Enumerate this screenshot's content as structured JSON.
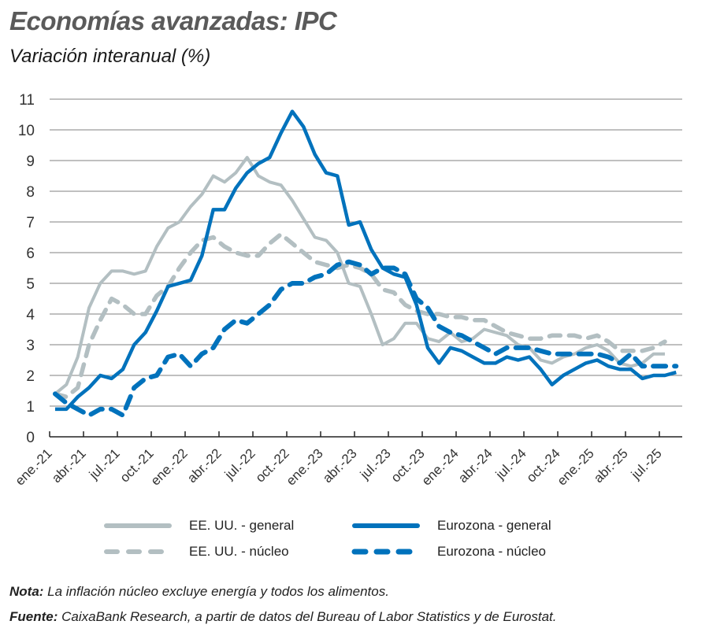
{
  "header": {
    "title": "Economías avanzadas: IPC",
    "subtitle": "Variación interanual (%)"
  },
  "colors": {
    "us": "#b3bfc2",
    "eurozone": "#0072bc",
    "grid": "#9a9a9a",
    "axis": "#222222"
  },
  "legend": {
    "items": [
      {
        "label": "EE. UU. - general",
        "series": "us_general"
      },
      {
        "label": "Eurozona - general",
        "series": "ez_general"
      },
      {
        "label": "EE. UU. - núcleo",
        "series": "us_core"
      },
      {
        "label": "Eurozona - núcleo",
        "series": "ez_core"
      }
    ]
  },
  "notes": {
    "nota_label": "Nota:",
    "nota_text": " La inflación núcleo excluye energía y todos los alimentos.",
    "fuente_label": "Fuente:",
    "fuente_text": " CaixaBank Research, a partir de datos del Bureau of Labor Statistics y de Eurostat."
  },
  "chart_data": {
    "type": "line",
    "title": "Economías avanzadas: IPC",
    "subtitle": "Variación interanual (%)",
    "xlabel": "",
    "ylabel": "",
    "ylim": [
      0,
      11
    ],
    "yticks": [
      0,
      1,
      2,
      3,
      4,
      5,
      6,
      7,
      8,
      9,
      10,
      11
    ],
    "grid": true,
    "legend_position": "bottom",
    "x_tick_labels": [
      "ene.-21",
      "abr.-21",
      "jul.-21",
      "oct.-21",
      "ene.-22",
      "abr.-22",
      "jul.-22",
      "oct.-22",
      "ene.-23",
      "abr.-23",
      "jul.-23",
      "oct.-23",
      "ene.-24",
      "abr.-24",
      "jul.-24",
      "oct.-24",
      "ene.-25",
      "abr.-25",
      "jul.-25"
    ],
    "x_start": "ene.-21",
    "frequency": "monthly",
    "series": [
      {
        "name": "EE. UU. - general",
        "key": "us_general",
        "style": "solid",
        "color": "#b3bfc2",
        "values": [
          1.4,
          1.7,
          2.6,
          4.2,
          5.0,
          5.4,
          5.4,
          5.3,
          5.4,
          6.2,
          6.8,
          7.0,
          7.5,
          7.9,
          8.5,
          8.3,
          8.6,
          9.1,
          8.5,
          8.3,
          8.2,
          7.7,
          7.1,
          6.5,
          6.4,
          6.0,
          5.0,
          4.9,
          4.0,
          3.0,
          3.2,
          3.7,
          3.7,
          3.2,
          3.1,
          3.4,
          3.1,
          3.2,
          3.5,
          3.4,
          3.3,
          3.0,
          2.9,
          2.5,
          2.4,
          2.6,
          2.7,
          2.9,
          3.0,
          2.8,
          2.4,
          2.3,
          2.4,
          2.7,
          2.7
        ]
      },
      {
        "name": "EE. UU. - núcleo",
        "key": "us_core",
        "style": "dashed",
        "color": "#b3bfc2",
        "values": [
          1.4,
          1.3,
          1.6,
          3.0,
          3.8,
          4.5,
          4.3,
          4.0,
          4.0,
          4.6,
          4.9,
          5.5,
          6.0,
          6.4,
          6.5,
          6.2,
          6.0,
          5.9,
          5.9,
          6.3,
          6.6,
          6.3,
          6.0,
          5.7,
          5.6,
          5.5,
          5.6,
          5.5,
          5.3,
          4.8,
          4.7,
          4.3,
          4.1,
          4.0,
          4.0,
          3.9,
          3.9,
          3.8,
          3.8,
          3.6,
          3.4,
          3.3,
          3.2,
          3.2,
          3.3,
          3.3,
          3.3,
          3.2,
          3.3,
          3.1,
          2.8,
          2.8,
          2.8,
          2.9,
          3.1
        ]
      },
      {
        "name": "Eurozona - general",
        "key": "ez_general",
        "style": "solid",
        "color": "#0072bc",
        "values": [
          0.9,
          0.9,
          1.3,
          1.6,
          2.0,
          1.9,
          2.2,
          3.0,
          3.4,
          4.1,
          4.9,
          5.0,
          5.1,
          5.9,
          7.4,
          7.4,
          8.1,
          8.6,
          8.9,
          9.1,
          9.9,
          10.6,
          10.1,
          9.2,
          8.6,
          8.5,
          6.9,
          7.0,
          6.1,
          5.5,
          5.3,
          5.2,
          4.3,
          2.9,
          2.4,
          2.9,
          2.8,
          2.6,
          2.4,
          2.4,
          2.6,
          2.5,
          2.6,
          2.2,
          1.7,
          2.0,
          2.2,
          2.4,
          2.5,
          2.3,
          2.2,
          2.2,
          1.9,
          2.0,
          2.0,
          2.1
        ]
      },
      {
        "name": "Eurozona - núcleo",
        "key": "ez_core",
        "style": "dashed",
        "color": "#0072bc",
        "values": [
          1.4,
          1.1,
          0.9,
          0.7,
          0.9,
          0.9,
          0.7,
          1.6,
          1.9,
          2.0,
          2.6,
          2.7,
          2.3,
          2.7,
          2.9,
          3.5,
          3.8,
          3.7,
          4.0,
          4.3,
          4.8,
          5.0,
          5.0,
          5.2,
          5.3,
          5.6,
          5.7,
          5.6,
          5.3,
          5.5,
          5.5,
          5.3,
          4.5,
          4.2,
          3.6,
          3.4,
          3.3,
          3.1,
          2.9,
          2.7,
          2.9,
          2.9,
          2.9,
          2.8,
          2.7,
          2.7,
          2.7,
          2.7,
          2.7,
          2.6,
          2.4,
          2.7,
          2.3,
          2.3,
          2.3,
          2.3
        ]
      }
    ]
  }
}
